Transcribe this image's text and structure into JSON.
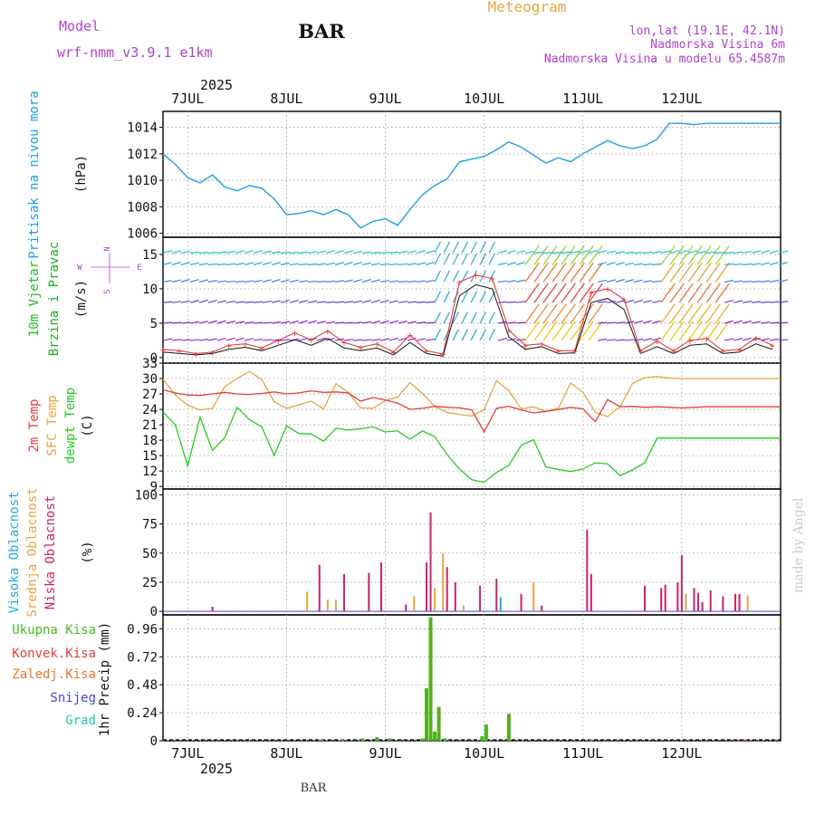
{
  "header": {
    "model_label": "Model",
    "model_name": "wrf-nmm_v3.9.1 e1km",
    "station": "BAR",
    "title": "Meteogram",
    "lonlat": "lon,lat (19.1E, 42.1N)",
    "elevation": "Nadmorska Visina 6m",
    "model_elevation": "Nadmorska Visina u modelu 65.4587m",
    "footer_station": "BAR",
    "watermark": "made by Angel"
  },
  "time_axis": {
    "year": "2025",
    "days": [
      "7JUL",
      "8JUL",
      "9JUL",
      "10JUL",
      "11JUL",
      "12JUL"
    ]
  },
  "colors": {
    "pressure": "#1ea0e6",
    "temp2m": "#e83c3c",
    "sfc_temp": "#e6a640",
    "dewpt": "#22cc22",
    "high_cloud": "#22aadd",
    "mid_cloud": "#e6a640",
    "low_cloud": "#cc2266",
    "total_precip": "#44bb22",
    "conv_precip": "#e83c3c",
    "frozen_precip": "#ee7722",
    "snow": "#4444dd",
    "hail": "#22ccaa",
    "wind_label": "#22bb22",
    "wind_label2": "#22aa22",
    "purple_text": "#b040d0",
    "title_text": "#e6a640"
  },
  "chart_data": [
    {
      "type": "line",
      "name": "pressure",
      "ylabel_text": "Pritisak na nivou mora",
      "unit": "(hPa)",
      "ylim": [
        1005.7,
        1015.2
      ],
      "yticks": [
        1006,
        1008,
        1010,
        1012,
        1014
      ],
      "x_hours": [
        0,
        3,
        6,
        9,
        12,
        15,
        18,
        21,
        24,
        27,
        30,
        33,
        36,
        39,
        42,
        45,
        48,
        51,
        54,
        57,
        60,
        63,
        66,
        69,
        72,
        75,
        78,
        81,
        84,
        87,
        90,
        93,
        96,
        99,
        102,
        105,
        108,
        111,
        114,
        117,
        120,
        123,
        126,
        129,
        132,
        135,
        138,
        141,
        144,
        147,
        150
      ],
      "series": [
        {
          "values": [
            1012.0,
            1011.2,
            1010.2,
            1009.8,
            1010.4,
            1009.5,
            1009.2,
            1009.6,
            1009.4,
            1008.6,
            1007.4,
            1007.5,
            1007.7,
            1007.4,
            1007.8,
            1007.4,
            1006.4,
            1006.9,
            1007.1,
            1006.6,
            1007.8,
            1008.9,
            1009.6,
            1010.1,
            1011.4,
            1011.6,
            1011.8,
            1012.3,
            1012.9,
            1012.5,
            1011.9,
            1011.3,
            1011.7,
            1011.4,
            1012.0,
            1012.5,
            1013.0,
            1012.6,
            1012.4,
            1012.6,
            1013.1,
            1014.3,
            1014.3,
            1014.2,
            1014.3,
            1014.3,
            1014.3,
            1014.3,
            1014.3,
            1014.3,
            1014.3
          ]
        }
      ]
    },
    {
      "type": "line",
      "name": "wind",
      "ylabel_text": "10m Vjetar",
      "ylabel_text2": "Brzina i Pravac",
      "unit": "(m/s)",
      "compass": "N",
      "compass_s": "S",
      "compass_w": "W",
      "compass_e": "E",
      "ylim": [
        -0.8,
        17.5
      ],
      "yticks": [
        0,
        5,
        10,
        15
      ],
      "x_hours": [
        0,
        4,
        8,
        12,
        16,
        20,
        24,
        28,
        32,
        36,
        40,
        44,
        48,
        52,
        56,
        60,
        64,
        68,
        72,
        76,
        80,
        84,
        88,
        92,
        96,
        100,
        104,
        108,
        112,
        116,
        120,
        124,
        128,
        132,
        136,
        140,
        144,
        148
      ],
      "series": [
        {
          "values": [
            1.2,
            1.0,
            0.6,
            0.8,
            1.8,
            2.0,
            1.4,
            2.5,
            3.6,
            2.6,
            3.9,
            2.2,
            1.5,
            2.0,
            0.8,
            3.3,
            1.0,
            0.5,
            11.0,
            12.0,
            11.5,
            4.0,
            1.8,
            2.0,
            1.0,
            1.0,
            9.5,
            10.0,
            8.5,
            1.0,
            2.4,
            1.0,
            2.5,
            2.8,
            1.0,
            1.2,
            2.9,
            1.8
          ]
        },
        {
          "values": [
            0.8,
            0.6,
            0.4,
            0.6,
            1.2,
            1.5,
            1.0,
            1.8,
            2.6,
            1.8,
            2.8,
            1.4,
            1.0,
            1.4,
            0.4,
            2.2,
            0.6,
            0.2,
            9.0,
            10.6,
            10.0,
            3.0,
            1.2,
            1.6,
            0.6,
            0.7,
            8.0,
            8.6,
            7.0,
            0.6,
            1.6,
            0.6,
            1.8,
            2.0,
            0.6,
            0.8,
            2.0,
            1.2
          ]
        }
      ]
    },
    {
      "type": "line",
      "name": "temperature",
      "ylabel_text": "2m Temp",
      "ylabel_text2": "SFC Temp",
      "ylabel_text3": "dewpt Temp",
      "unit": "(C)",
      "ylim": [
        8.5,
        33
      ],
      "yticks": [
        9,
        12,
        15,
        18,
        21,
        24,
        27,
        30,
        33
      ],
      "x_hours": [
        0,
        3,
        6,
        9,
        12,
        15,
        18,
        21,
        24,
        27,
        30,
        33,
        36,
        39,
        42,
        45,
        48,
        51,
        54,
        57,
        60,
        63,
        66,
        69,
        72,
        75,
        78,
        81,
        84,
        87,
        90,
        93,
        96,
        99,
        102,
        105,
        108,
        111,
        114,
        117,
        120,
        123,
        126,
        129,
        132,
        135,
        138,
        141,
        144,
        147,
        150
      ],
      "series": [
        {
          "name": "2m",
          "values": [
            27.8,
            27.2,
            26.8,
            26.7,
            27.0,
            27.3,
            27.0,
            26.9,
            27.1,
            27.4,
            27.0,
            27.2,
            27.6,
            27.3,
            27.4,
            27.2,
            25.6,
            26.3,
            25.8,
            25.2,
            24.0,
            24.2,
            24.6,
            24.4,
            24.3,
            23.9,
            19.6,
            24.2,
            24.6,
            23.9,
            23.3,
            23.6,
            24.0,
            24.4,
            24.1,
            21.6,
            25.9,
            24.5,
            24.6,
            24.4,
            24.5,
            24.4,
            24.3,
            24.4,
            24.5,
            24.5,
            24.5,
            24.5,
            24.5,
            24.5,
            24.5
          ]
        },
        {
          "name": "SFC",
          "values": [
            29.9,
            26.8,
            24.8,
            23.9,
            24.2,
            28.4,
            30.0,
            31.4,
            29.8,
            25.5,
            24.2,
            24.9,
            25.6,
            24.1,
            29.0,
            27.3,
            24.3,
            24.2,
            25.7,
            26.4,
            29.2,
            27.1,
            24.6,
            23.4,
            23.0,
            22.7,
            23.9,
            29.6,
            27.6,
            24.1,
            24.5,
            23.6,
            24.2,
            29.1,
            27.3,
            23.4,
            22.6,
            24.5,
            29.0,
            30.2,
            30.4,
            30.1,
            30.0,
            30.0,
            30.0,
            30.0,
            30.0,
            30.0,
            30.0,
            30.0,
            30.0
          ]
        },
        {
          "name": "dewpt",
          "values": [
            23.5,
            21.0,
            13.0,
            22.5,
            16.0,
            18.5,
            24.4,
            22.0,
            20.6,
            15.0,
            20.8,
            19.3,
            19.2,
            17.8,
            20.3,
            20.0,
            20.2,
            20.6,
            19.6,
            19.8,
            18.2,
            19.8,
            18.7,
            15.2,
            12.4,
            10.3,
            9.8,
            11.7,
            13.1,
            17.0,
            18.1,
            12.8,
            12.3,
            11.9,
            12.4,
            13.6,
            13.4,
            11.1,
            12.2,
            13.6,
            18.4,
            18.4,
            18.4,
            18.4,
            18.4,
            18.4,
            18.4,
            18.4,
            18.4,
            18.4,
            18.4
          ]
        }
      ]
    },
    {
      "type": "bar",
      "name": "cloud",
      "ylabel_text": "Visoka Oblacnost",
      "ylabel_text2": "Srednja Oblacnost",
      "ylabel_text3": "Niska Oblacnost",
      "unit": "(%)",
      "ylim": [
        -3,
        105
      ],
      "yticks": [
        0,
        25,
        50,
        75,
        100
      ],
      "bars": [
        {
          "h": 12,
          "v": 4,
          "s": "low"
        },
        {
          "h": 35,
          "v": 17,
          "s": "mid"
        },
        {
          "h": 38,
          "v": 40,
          "s": "low"
        },
        {
          "h": 40,
          "v": 10,
          "s": "mid"
        },
        {
          "h": 42,
          "v": 10,
          "s": "mid"
        },
        {
          "h": 44,
          "v": 32,
          "s": "low"
        },
        {
          "h": 50,
          "v": 33,
          "s": "low"
        },
        {
          "h": 53,
          "v": 42,
          "s": "low"
        },
        {
          "h": 59,
          "v": 6,
          "s": "low"
        },
        {
          "h": 61,
          "v": 13,
          "s": "mid"
        },
        {
          "h": 64,
          "v": 42,
          "s": "low"
        },
        {
          "h": 65,
          "v": 85,
          "s": "low"
        },
        {
          "h": 66,
          "v": 20,
          "s": "mid"
        },
        {
          "h": 68,
          "v": 50,
          "s": "mid"
        },
        {
          "h": 69,
          "v": 38,
          "s": "low"
        },
        {
          "h": 71,
          "v": 25,
          "s": "low"
        },
        {
          "h": 73,
          "v": 5,
          "s": "mid"
        },
        {
          "h": 77,
          "v": 22,
          "s": "low"
        },
        {
          "h": 81,
          "v": 28,
          "s": "low"
        },
        {
          "h": 82,
          "v": 12,
          "s": "high"
        },
        {
          "h": 87,
          "v": 15,
          "s": "low"
        },
        {
          "h": 90,
          "v": 25,
          "s": "mid"
        },
        {
          "h": 92,
          "v": 5,
          "s": "low"
        },
        {
          "h": 103,
          "v": 70,
          "s": "low"
        },
        {
          "h": 104,
          "v": 32,
          "s": "low"
        },
        {
          "h": 117,
          "v": 22,
          "s": "low"
        },
        {
          "h": 121,
          "v": 20,
          "s": "low"
        },
        {
          "h": 122,
          "v": 23,
          "s": "low"
        },
        {
          "h": 125,
          "v": 25,
          "s": "low"
        },
        {
          "h": 126,
          "v": 48,
          "s": "low"
        },
        {
          "h": 127,
          "v": 15,
          "s": "mid"
        },
        {
          "h": 129,
          "v": 20,
          "s": "low"
        },
        {
          "h": 130,
          "v": 16,
          "s": "low"
        },
        {
          "h": 131,
          "v": 8,
          "s": "low"
        },
        {
          "h": 133,
          "v": 18,
          "s": "low"
        },
        {
          "h": 136,
          "v": 13,
          "s": "low"
        },
        {
          "h": 139,
          "v": 15,
          "s": "low"
        },
        {
          "h": 140,
          "v": 15,
          "s": "low"
        },
        {
          "h": 142,
          "v": 14,
          "s": "mid"
        }
      ]
    },
    {
      "type": "bar",
      "name": "precip",
      "legend": [
        "Ukupna Kisa",
        "Konvek.Kisa",
        "Zaledj.Kisa",
        "Snijeg",
        "Grad"
      ],
      "ylabel_text": "1hr Precip (mm)",
      "ylim": [
        0,
        1.08
      ],
      "yticks": [
        0,
        0.24,
        0.48,
        0.72,
        0.96
      ],
      "ytick_labels": [
        "0",
        "0.24",
        "0.48",
        "0.72",
        "0.96"
      ],
      "bars": [
        {
          "h": 38.5,
          "v": 0.01,
          "s": "total"
        },
        {
          "h": 43.5,
          "v": 0.01,
          "s": "total"
        },
        {
          "h": 48.5,
          "v": 0.02,
          "s": "total"
        },
        {
          "h": 52,
          "v": 0.03,
          "s": "total"
        },
        {
          "h": 55,
          "v": 0.02,
          "s": "total"
        },
        {
          "h": 63,
          "v": 0.02,
          "s": "total"
        },
        {
          "h": 64,
          "v": 0.45,
          "s": "total"
        },
        {
          "h": 65,
          "v": 1.06,
          "s": "total"
        },
        {
          "h": 66,
          "v": 0.08,
          "s": "total"
        },
        {
          "h": 67,
          "v": 0.29,
          "s": "total"
        },
        {
          "h": 68.5,
          "v": 0.02,
          "s": "total"
        },
        {
          "h": 77.5,
          "v": 0.04,
          "s": "total"
        },
        {
          "h": 78.5,
          "v": 0.14,
          "s": "total"
        },
        {
          "h": 84,
          "v": 0.23,
          "s": "total"
        },
        {
          "h": 104,
          "v": 0.01,
          "s": "total"
        },
        {
          "h": 141.5,
          "v": 0.01,
          "s": "conv"
        }
      ]
    }
  ]
}
